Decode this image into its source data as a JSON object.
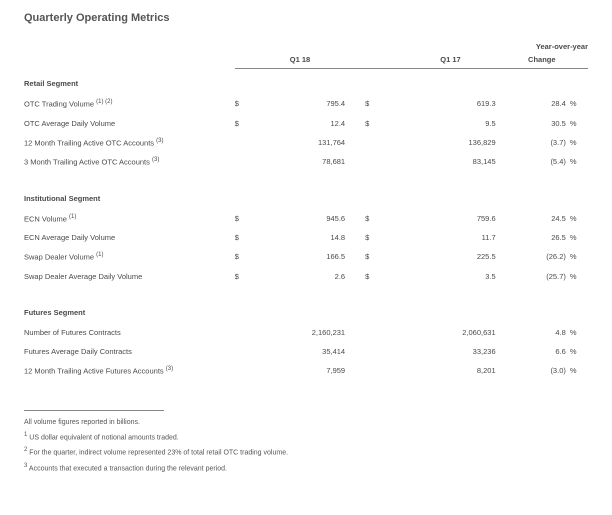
{
  "title": "Quarterly Operating Metrics",
  "headers": {
    "q1": "Q1 18",
    "q2": "Q1 17",
    "yoy_line1": "Year-over-year",
    "yoy_line2": "Change"
  },
  "sections": [
    {
      "name": "Retail Segment",
      "rows": [
        {
          "label": "OTC Trading Volume",
          "sup": "(1) (2)",
          "cur": "$",
          "v1": "795.4",
          "v2": "619.3",
          "chg": "28.4",
          "pct": "%"
        },
        {
          "label": "OTC Average Daily Volume",
          "sup": "",
          "cur": "$",
          "v1": "12.4",
          "v2": "9.5",
          "chg": "30.5",
          "pct": "%"
        },
        {
          "label": "12 Month Trailing Active OTC Accounts",
          "sup": "(3)",
          "cur": "",
          "v1": "131,764",
          "v2": "136,829",
          "chg": "(3.7)",
          "pct": "%"
        },
        {
          "label": "3 Month Trailing Active OTC Accounts",
          "sup": "(3)",
          "cur": "",
          "v1": "78,681",
          "v2": "83,145",
          "chg": "(5.4)",
          "pct": "%"
        }
      ]
    },
    {
      "name": "Institutional Segment",
      "rows": [
        {
          "label": "ECN Volume",
          "sup": "(1)",
          "cur": "$",
          "v1": "945.6",
          "v2": "759.6",
          "chg": "24.5",
          "pct": "%"
        },
        {
          "label": "ECN Average Daily Volume",
          "sup": "",
          "cur": "$",
          "v1": "14.8",
          "v2": "11.7",
          "chg": "26.5",
          "pct": "%"
        },
        {
          "label": "Swap Dealer Volume",
          "sup": "(1)",
          "cur": "$",
          "v1": "166.5",
          "v2": "225.5",
          "chg": "(26.2)",
          "pct": "%"
        },
        {
          "label": "Swap Dealer Average Daily Volume",
          "sup": "",
          "cur": "$",
          "v1": "2.6",
          "v2": "3.5",
          "chg": "(25.7)",
          "pct": "%"
        }
      ]
    },
    {
      "name": "Futures Segment",
      "rows": [
        {
          "label": "Number of Futures Contracts",
          "sup": "",
          "cur": "",
          "v1": "2,160,231",
          "v2": "2,060,631",
          "chg": "4.8",
          "pct": "%"
        },
        {
          "label": "Futures Average Daily Contracts",
          "sup": "",
          "cur": "",
          "v1": "35,414",
          "v2": "33,236",
          "chg": "6.6",
          "pct": "%"
        },
        {
          "label": "12 Month Trailing Active Futures Accounts",
          "sup": "(3)",
          "cur": "",
          "v1": "7,959",
          "v2": "8,201",
          "chg": "(3.0)",
          "pct": "%"
        }
      ]
    }
  ],
  "footnotes": {
    "intro": "All volume figures reported in billions.",
    "f1": "US dollar equivalent of notional amounts traded.",
    "f2": "For the quarter, indirect volume represented 23% of total retail OTC trading volume.",
    "f3": "Accounts that executed a transaction during the relevant period."
  }
}
